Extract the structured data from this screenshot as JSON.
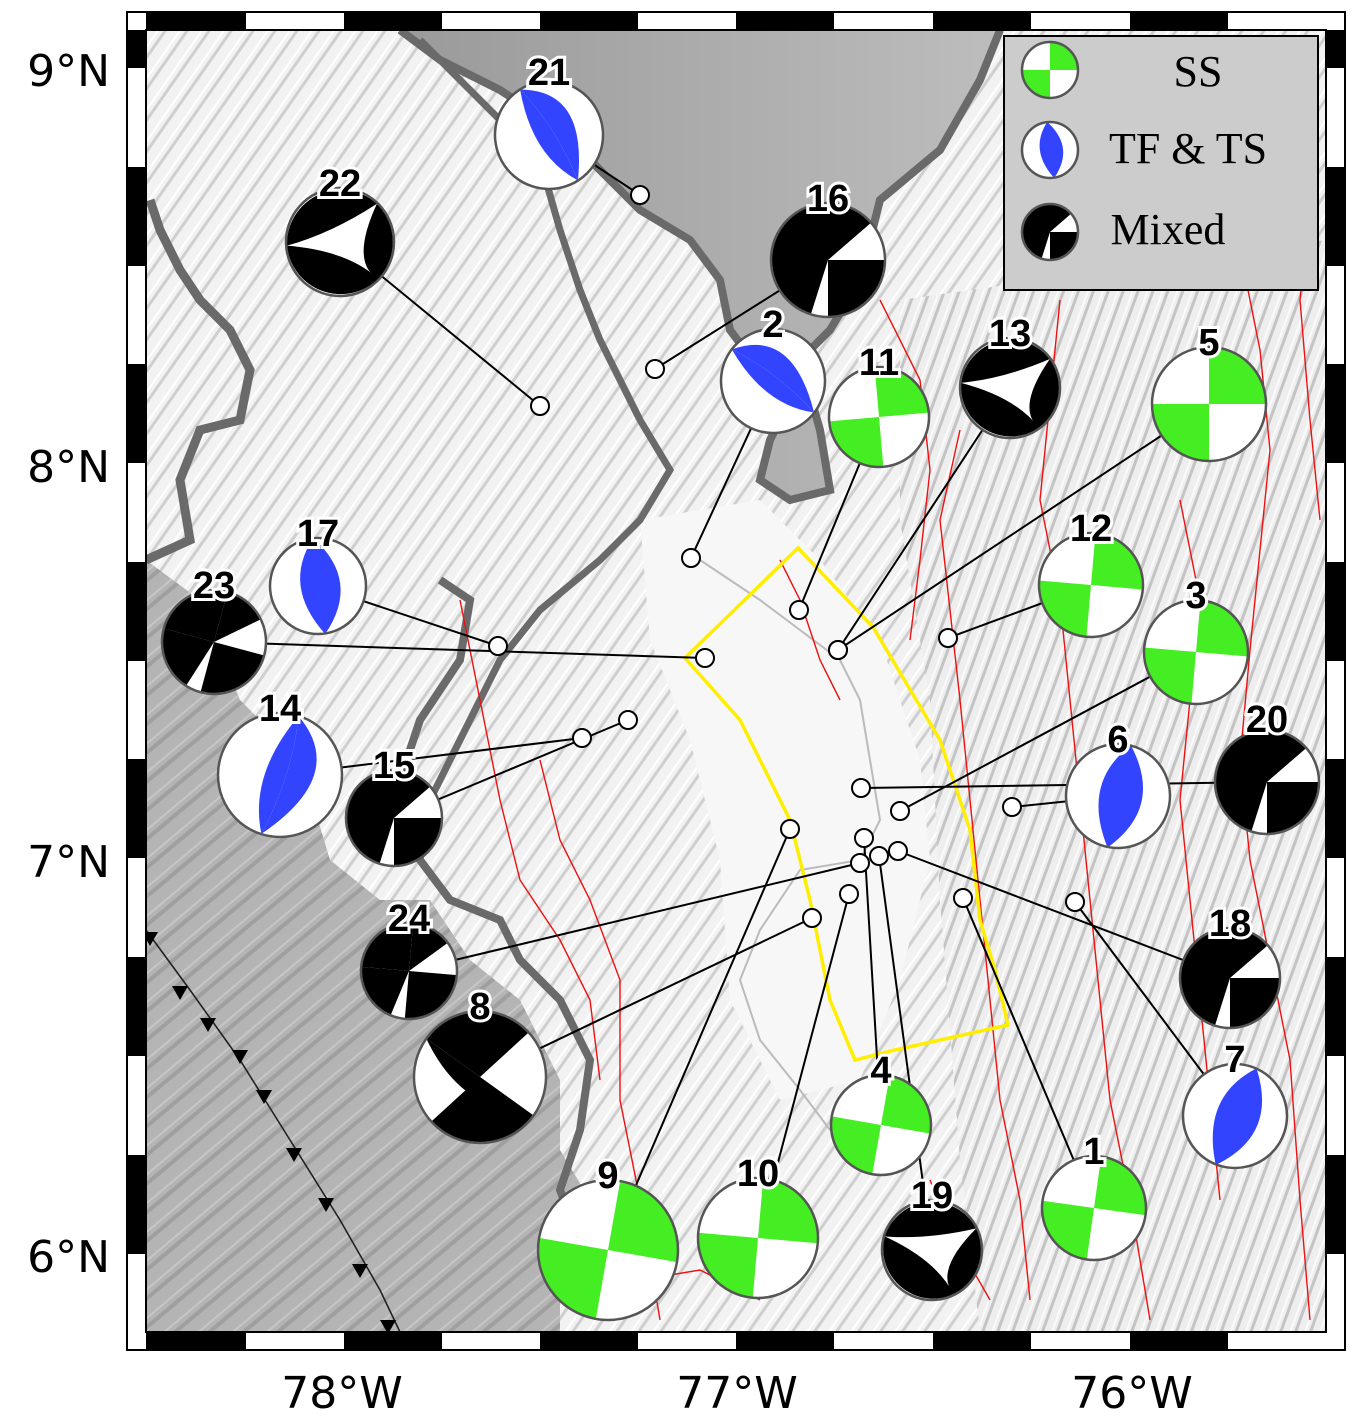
{
  "map": {
    "latitude_labels": [
      "9°N",
      "8°N",
      "7°N",
      "6°N"
    ],
    "longitude_labels": [
      "78°W",
      "77°W",
      "76°W"
    ],
    "lat_values": [
      9,
      8,
      7,
      6
    ],
    "lon_values": [
      -78,
      -77,
      -76
    ]
  },
  "legend": {
    "items": [
      {
        "label": "SS",
        "type": "ss",
        "color": "#44ee22"
      },
      {
        "label": "TF & TS",
        "type": "tf",
        "color": "#3344ff"
      },
      {
        "label": "Mixed",
        "type": "mixed",
        "color": "#000000"
      }
    ]
  },
  "colors": {
    "ss": "#44ee22",
    "tf": "#3344ff",
    "mixed": "#000000",
    "study_area": "#ffee00",
    "faults": "#ee1111",
    "coast": "#6a6a6a"
  },
  "events": [
    {
      "id": "1",
      "type": "ss"
    },
    {
      "id": "2",
      "type": "tf"
    },
    {
      "id": "3",
      "type": "ss"
    },
    {
      "id": "4",
      "type": "ss"
    },
    {
      "id": "5",
      "type": "ss"
    },
    {
      "id": "6",
      "type": "tf"
    },
    {
      "id": "7",
      "type": "tf"
    },
    {
      "id": "8",
      "type": "mixed"
    },
    {
      "id": "9",
      "type": "ss"
    },
    {
      "id": "10",
      "type": "ss"
    },
    {
      "id": "11",
      "type": "ss"
    },
    {
      "id": "12",
      "type": "ss"
    },
    {
      "id": "13",
      "type": "mixed"
    },
    {
      "id": "14",
      "type": "tf"
    },
    {
      "id": "15",
      "type": "mixed"
    },
    {
      "id": "16",
      "type": "mixed"
    },
    {
      "id": "17",
      "type": "tf"
    },
    {
      "id": "18",
      "type": "mixed"
    },
    {
      "id": "19",
      "type": "mixed"
    },
    {
      "id": "20",
      "type": "mixed"
    },
    {
      "id": "21",
      "type": "tf"
    },
    {
      "id": "22",
      "type": "mixed"
    },
    {
      "id": "23",
      "type": "mixed"
    },
    {
      "id": "24",
      "type": "mixed"
    }
  ]
}
